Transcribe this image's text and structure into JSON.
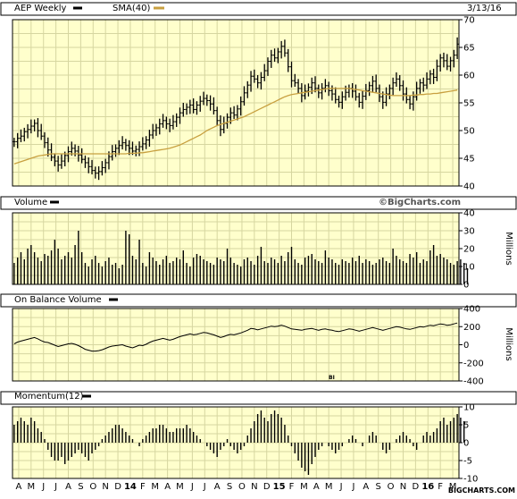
{
  "colors": {
    "panel_bg": "#ffffcc",
    "grid": "#d6d6a0",
    "border": "#000000",
    "price": "#000000",
    "sma": "#c8a040",
    "text": "#000000",
    "watermark": "#555555"
  },
  "header": {
    "date": "3/13/16"
  },
  "watermark": "©BigCharts.com",
  "footer_brand": "BIGCHARTS.COM",
  "chart_data": [
    {
      "type": "ohlc",
      "title": "AEP Weekly",
      "legend": [
        {
          "name": "AEP Weekly",
          "color": "#000000"
        },
        {
          "name": "SMA(40)",
          "color": "#c8a040"
        }
      ],
      "ylim": [
        40,
        70
      ],
      "yticks": [
        40,
        45,
        50,
        55,
        60,
        65,
        70
      ],
      "grid": true,
      "closes": [
        48.0,
        48.6,
        49.0,
        49.8,
        50.2,
        50.8,
        51.3,
        50.0,
        49.0,
        47.8,
        46.5,
        45.2,
        44.5,
        43.8,
        44.5,
        45.5,
        46.2,
        46.8,
        46.3,
        45.6,
        44.8,
        44.2,
        43.5,
        42.8,
        42.3,
        42.6,
        43.3,
        44.2,
        45.3,
        46.2,
        46.8,
        47.3,
        47.8,
        47.3,
        46.8,
        46.3,
        46.6,
        47.1,
        47.6,
        48.3,
        49.2,
        50.0,
        50.5,
        51.2,
        51.8,
        51.2,
        50.9,
        51.6,
        52.4,
        53.2,
        53.8,
        54.2,
        54.6,
        53.8,
        54.6,
        55.3,
        55.8,
        55.4,
        54.8,
        53.6,
        51.8,
        50.2,
        51.3,
        52.4,
        53.2,
        52.8,
        53.9,
        55.2,
        56.8,
        58.2,
        59.8,
        59.3,
        58.6,
        59.6,
        60.8,
        62.5,
        63.6,
        63.1,
        64.2,
        65.2,
        64.0,
        61.5,
        59.0,
        58.6,
        57.6,
        56.3,
        57.1,
        57.8,
        58.6,
        57.6,
        56.8,
        57.6,
        58.1,
        57.2,
        56.6,
        55.6,
        55.1,
        56.1,
        56.9,
        57.6,
        57.1,
        56.1,
        55.1,
        56.2,
        57.2,
        58.1,
        58.9,
        57.6,
        56.1,
        55.1,
        56.6,
        57.6,
        58.6,
        59.3,
        58.1,
        56.6,
        55.6,
        54.8,
        56.1,
        57.6,
        58.6,
        58.2,
        59.3,
        60.2,
        59.6,
        61.6,
        63.1,
        62.6,
        61.6,
        62.6,
        63.6,
        65.6
      ],
      "sma": [
        44.0,
        44.2,
        44.4,
        44.6,
        44.8,
        45.0,
        45.2,
        45.4,
        45.5,
        45.6,
        45.7,
        45.8,
        45.8,
        45.8,
        45.8,
        45.8,
        45.8,
        45.8,
        45.8,
        45.8,
        45.8,
        45.8,
        45.8,
        45.8,
        45.8,
        45.8,
        45.8,
        45.8,
        45.8,
        45.8,
        45.8,
        45.8,
        45.8,
        45.8,
        45.9,
        45.9,
        45.9,
        46.0,
        46.0,
        46.1,
        46.2,
        46.3,
        46.4,
        46.5,
        46.6,
        46.7,
        46.8,
        47.0,
        47.2,
        47.4,
        47.7,
        48.0,
        48.3,
        48.6,
        48.9,
        49.2,
        49.6,
        50.0,
        50.3,
        50.6,
        50.9,
        51.1,
        51.3,
        51.5,
        51.7,
        51.9,
        52.1,
        52.3,
        52.5,
        52.8,
        53.1,
        53.4,
        53.7,
        54.0,
        54.3,
        54.6,
        54.9,
        55.2,
        55.5,
        55.8,
        56.1,
        56.3,
        56.5,
        56.6,
        56.7,
        56.8,
        56.9,
        57.0,
        57.1,
        57.2,
        57.3,
        57.4,
        57.5,
        57.6,
        57.6,
        57.6,
        57.6,
        57.6,
        57.6,
        57.6,
        57.5,
        57.4,
        57.3,
        57.2,
        57.1,
        57.0,
        56.9,
        56.8,
        56.7,
        56.6,
        56.5,
        56.4,
        56.3,
        56.3,
        56.3,
        56.3,
        56.3,
        56.3,
        56.4,
        56.4,
        56.5,
        56.5,
        56.6,
        56.6,
        56.7,
        56.7,
        56.8,
        56.9,
        57.0,
        57.1,
        57.2,
        57.3
      ]
    },
    {
      "type": "bar",
      "title": "Volume",
      "ylabel": "Millions",
      "ylim": [
        0,
        40
      ],
      "yticks": [
        0,
        10,
        20,
        30,
        40
      ],
      "grid": true,
      "values": [
        12,
        15,
        18,
        14,
        20,
        22,
        18,
        15,
        13,
        17,
        16,
        19,
        25,
        20,
        14,
        16,
        18,
        15,
        22,
        30,
        18,
        12,
        10,
        14,
        16,
        12,
        10,
        13,
        15,
        11,
        12,
        9,
        11,
        30,
        28,
        16,
        14,
        25,
        12,
        10,
        18,
        15,
        13,
        11,
        14,
        16,
        12,
        13,
        15,
        14,
        19,
        12,
        10,
        15,
        17,
        16,
        14,
        13,
        12,
        11,
        15,
        14,
        13,
        20,
        15,
        12,
        11,
        10,
        14,
        15,
        13,
        11,
        16,
        21,
        13,
        12,
        15,
        14,
        12,
        16,
        13,
        18,
        21,
        14,
        12,
        11,
        15,
        16,
        17,
        14,
        13,
        12,
        19,
        15,
        14,
        12,
        11,
        14,
        13,
        12,
        15,
        13,
        16,
        12,
        14,
        13,
        11,
        12,
        14,
        15,
        13,
        12,
        20,
        16,
        14,
        13,
        12,
        17,
        15,
        18,
        12,
        14,
        13,
        19,
        22,
        16,
        17,
        15,
        14,
        12,
        11,
        13,
        14,
        12,
        9
      ]
    },
    {
      "type": "line",
      "title": "On Balance Volume",
      "ylabel": "Millions",
      "ylim": [
        -400,
        400
      ],
      "yticks": [
        -400,
        -200,
        0,
        200,
        400
      ],
      "grid": true,
      "annotation": "BI",
      "values": [
        10,
        30,
        40,
        50,
        60,
        70,
        80,
        65,
        45,
        30,
        25,
        10,
        -5,
        -20,
        -10,
        0,
        10,
        15,
        5,
        -10,
        -30,
        -50,
        -60,
        -70,
        -70,
        -65,
        -55,
        -40,
        -25,
        -15,
        -10,
        -5,
        0,
        -15,
        -25,
        -35,
        -20,
        -5,
        -10,
        5,
        25,
        40,
        50,
        60,
        70,
        60,
        50,
        60,
        75,
        90,
        100,
        110,
        120,
        110,
        115,
        125,
        135,
        130,
        120,
        110,
        95,
        80,
        90,
        105,
        115,
        110,
        120,
        130,
        145,
        160,
        180,
        175,
        165,
        175,
        185,
        195,
        205,
        200,
        205,
        215,
        205,
        190,
        175,
        170,
        165,
        160,
        170,
        175,
        180,
        170,
        160,
        170,
        175,
        165,
        160,
        150,
        145,
        155,
        165,
        175,
        170,
        160,
        150,
        160,
        170,
        180,
        190,
        180,
        170,
        160,
        170,
        180,
        190,
        200,
        195,
        185,
        175,
        170,
        180,
        190,
        200,
        195,
        205,
        215,
        210,
        220,
        230,
        225,
        215,
        220,
        230,
        240
      ]
    },
    {
      "type": "bar",
      "title": "Momentum(12)",
      "ylim": [
        -10,
        10
      ],
      "yticks": [
        -10,
        -5,
        0,
        5,
        10
      ],
      "grid": true,
      "values": [
        5,
        6,
        7,
        6,
        5,
        7,
        6,
        4,
        3,
        1,
        -2,
        -4,
        -5,
        -5,
        -4,
        -6,
        -5,
        -4,
        -3,
        -2,
        -3,
        -4,
        -5,
        -3,
        -2,
        -1,
        1,
        2,
        3,
        4,
        5,
        5,
        4,
        3,
        2,
        1,
        0,
        -1,
        1,
        2,
        3,
        4,
        4,
        5,
        5,
        4,
        3,
        3,
        4,
        4,
        4,
        5,
        4,
        3,
        2,
        1,
        0,
        -1,
        -2,
        -3,
        -4,
        -2,
        -1,
        1,
        -1,
        -2,
        -3,
        -2,
        -1,
        2,
        4,
        6,
        8,
        9,
        7,
        6,
        8,
        9,
        8,
        7,
        5,
        2,
        -1,
        -3,
        -5,
        -7,
        -8,
        -9,
        -6,
        -4,
        -2,
        -1,
        0,
        -1,
        -2,
        -3,
        -2,
        -1,
        0,
        1,
        2,
        1,
        0,
        -1,
        0,
        2,
        3,
        2,
        0,
        -2,
        -3,
        -2,
        0,
        1,
        2,
        3,
        2,
        1,
        -1,
        -2,
        0,
        2,
        3,
        2,
        3,
        4,
        6,
        7,
        5,
        6,
        7,
        8,
        7,
        6
      ]
    }
  ],
  "x_axis": {
    "labels": [
      "A",
      "M",
      "J",
      "J",
      "A",
      "S",
      "O",
      "N",
      "D",
      "14",
      "F",
      "M",
      "A",
      "M",
      "J",
      "J",
      "A",
      "S",
      "O",
      "N",
      "D",
      "15",
      "F",
      "M",
      "A",
      "M",
      "J",
      "J",
      "A",
      "S",
      "O",
      "N",
      "D",
      "16",
      "F",
      "M"
    ]
  }
}
